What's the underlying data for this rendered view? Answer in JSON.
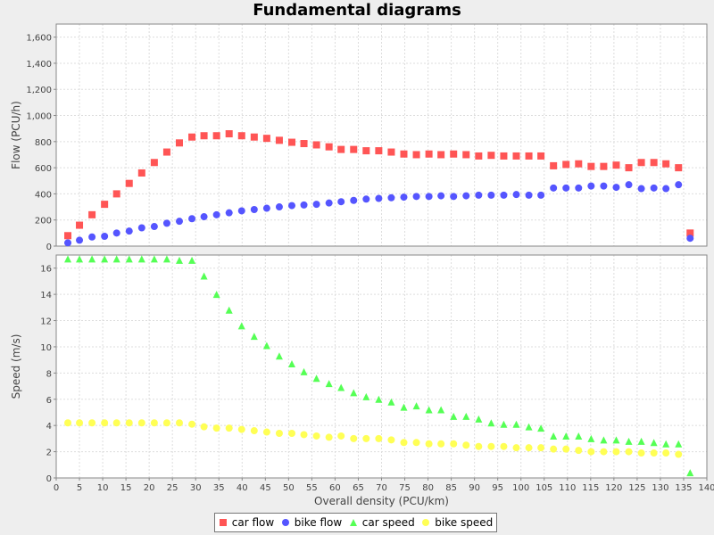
{
  "chart_data": [
    {
      "type": "scatter",
      "title": "Fundamental diagrams",
      "ylabel": "Flow (PCU/h)",
      "ylim": [
        0,
        1700
      ],
      "yticks": [
        0,
        200,
        400,
        600,
        800,
        1000,
        1200,
        1400,
        1600
      ],
      "ytick_labels": [
        "0",
        "200",
        "400",
        "600",
        "800",
        "1,000",
        "1,200",
        "1,400",
        "1,600"
      ],
      "grid": true,
      "series": [
        {
          "name": "car flow",
          "color": "#ff5555",
          "marker": "square",
          "x": [
            2.5,
            5,
            7.7,
            10.4,
            13,
            15.7,
            18.4,
            21.1,
            23.8,
            26.5,
            29.2,
            31.8,
            34.5,
            37.2,
            39.9,
            42.6,
            45.3,
            48,
            50.7,
            53.3,
            56,
            58.7,
            61.3,
            64,
            66.7,
            69.4,
            72.1,
            74.8,
            77.5,
            80.2,
            82.8,
            85.5,
            88.2,
            90.9,
            93.6,
            96.3,
            99,
            101.7,
            104.3,
            107,
            109.7,
            112.4,
            115.1,
            117.8,
            120.5,
            123.2,
            125.9,
            128.6,
            131.2,
            133.9,
            136.4
          ],
          "y": [
            80,
            160,
            240,
            320,
            400,
            480,
            560,
            640,
            720,
            790,
            835,
            845,
            845,
            860,
            845,
            835,
            825,
            810,
            795,
            785,
            775,
            760,
            740,
            740,
            730,
            730,
            720,
            705,
            700,
            705,
            700,
            705,
            700,
            690,
            695,
            690,
            690,
            690,
            690,
            615,
            625,
            630,
            610,
            610,
            620,
            600,
            640,
            640,
            630,
            600,
            100
          ]
        },
        {
          "name": "bike flow",
          "color": "#5555ff",
          "marker": "circle",
          "x": [
            2.5,
            5,
            7.7,
            10.4,
            13,
            15.7,
            18.4,
            21.1,
            23.8,
            26.5,
            29.2,
            31.8,
            34.5,
            37.2,
            39.9,
            42.6,
            45.3,
            48,
            50.7,
            53.3,
            56,
            58.7,
            61.3,
            64,
            66.7,
            69.4,
            72.1,
            74.8,
            77.5,
            80.2,
            82.8,
            85.5,
            88.2,
            90.9,
            93.6,
            96.3,
            99,
            101.7,
            104.3,
            107,
            109.7,
            112.4,
            115.1,
            117.8,
            120.5,
            123.2,
            125.9,
            128.6,
            131.2,
            133.9,
            136.4
          ],
          "y": [
            25,
            45,
            70,
            75,
            100,
            115,
            140,
            150,
            175,
            190,
            210,
            225,
            240,
            255,
            270,
            280,
            290,
            300,
            310,
            315,
            320,
            330,
            340,
            350,
            360,
            365,
            370,
            375,
            380,
            380,
            385,
            380,
            385,
            390,
            390,
            390,
            395,
            390,
            390,
            445,
            445,
            445,
            460,
            460,
            450,
            470,
            440,
            445,
            440,
            470,
            60
          ]
        }
      ]
    },
    {
      "type": "scatter",
      "xlabel": "Overall density (PCU/km)",
      "ylabel": "Speed (m/s)",
      "xlim": [
        0,
        140
      ],
      "xticks": [
        0,
        5,
        10,
        15,
        20,
        25,
        30,
        35,
        40,
        45,
        50,
        55,
        60,
        65,
        70,
        75,
        80,
        85,
        90,
        95,
        100,
        105,
        110,
        115,
        120,
        125,
        130,
        135,
        140
      ],
      "ylim": [
        0,
        17
      ],
      "yticks": [
        0,
        2,
        4,
        6,
        8,
        10,
        12,
        14,
        16
      ],
      "grid": true,
      "series": [
        {
          "name": "car speed",
          "color": "#55ff55",
          "marker": "triangle",
          "x": [
            2.5,
            5,
            7.7,
            10.4,
            13,
            15.7,
            18.4,
            21.1,
            23.8,
            26.5,
            29.2,
            31.8,
            34.5,
            37.2,
            39.9,
            42.6,
            45.3,
            48,
            50.7,
            53.3,
            56,
            58.7,
            61.3,
            64,
            66.7,
            69.4,
            72.1,
            74.8,
            77.5,
            80.2,
            82.8,
            85.5,
            88.2,
            90.9,
            93.6,
            96.3,
            99,
            101.7,
            104.3,
            107,
            109.7,
            112.4,
            115.1,
            117.8,
            120.5,
            123.2,
            125.9,
            128.6,
            131.2,
            133.9,
            136.4
          ],
          "y": [
            16.7,
            16.7,
            16.7,
            16.7,
            16.7,
            16.7,
            16.7,
            16.7,
            16.7,
            16.6,
            16.6,
            15.4,
            14,
            12.8,
            11.6,
            10.8,
            10.1,
            9.3,
            8.7,
            8.1,
            7.6,
            7.2,
            6.9,
            6.5,
            6.2,
            6,
            5.8,
            5.4,
            5.5,
            5.2,
            5.2,
            4.7,
            4.7,
            4.5,
            4.2,
            4.1,
            4.1,
            3.9,
            3.8,
            3.2,
            3.2,
            3.2,
            3,
            2.9,
            2.9,
            2.8,
            2.8,
            2.7,
            2.6,
            2.6,
            0.4
          ]
        },
        {
          "name": "bike speed",
          "color": "#ffff55",
          "marker": "circle",
          "x": [
            2.5,
            5,
            7.7,
            10.4,
            13,
            15.7,
            18.4,
            21.1,
            23.8,
            26.5,
            29.2,
            31.8,
            34.5,
            37.2,
            39.9,
            42.6,
            45.3,
            48,
            50.7,
            53.3,
            56,
            58.7,
            61.3,
            64,
            66.7,
            69.4,
            72.1,
            74.8,
            77.5,
            80.2,
            82.8,
            85.5,
            88.2,
            90.9,
            93.6,
            96.3,
            99,
            101.7,
            104.3,
            107,
            109.7,
            112.4,
            115.1,
            117.8,
            120.5,
            123.2,
            125.9,
            128.6,
            131.2,
            133.9
          ],
          "y": [
            4.2,
            4.2,
            4.2,
            4.2,
            4.2,
            4.2,
            4.2,
            4.2,
            4.2,
            4.2,
            4.1,
            3.9,
            3.8,
            3.8,
            3.7,
            3.6,
            3.5,
            3.4,
            3.4,
            3.3,
            3.2,
            3.1,
            3.2,
            3,
            3,
            3,
            2.9,
            2.7,
            2.7,
            2.6,
            2.6,
            2.6,
            2.5,
            2.4,
            2.4,
            2.4,
            2.3,
            2.3,
            2.3,
            2.2,
            2.2,
            2.1,
            2,
            2,
            2,
            2,
            1.9,
            1.9,
            1.9,
            1.8
          ]
        }
      ]
    }
  ]
}
